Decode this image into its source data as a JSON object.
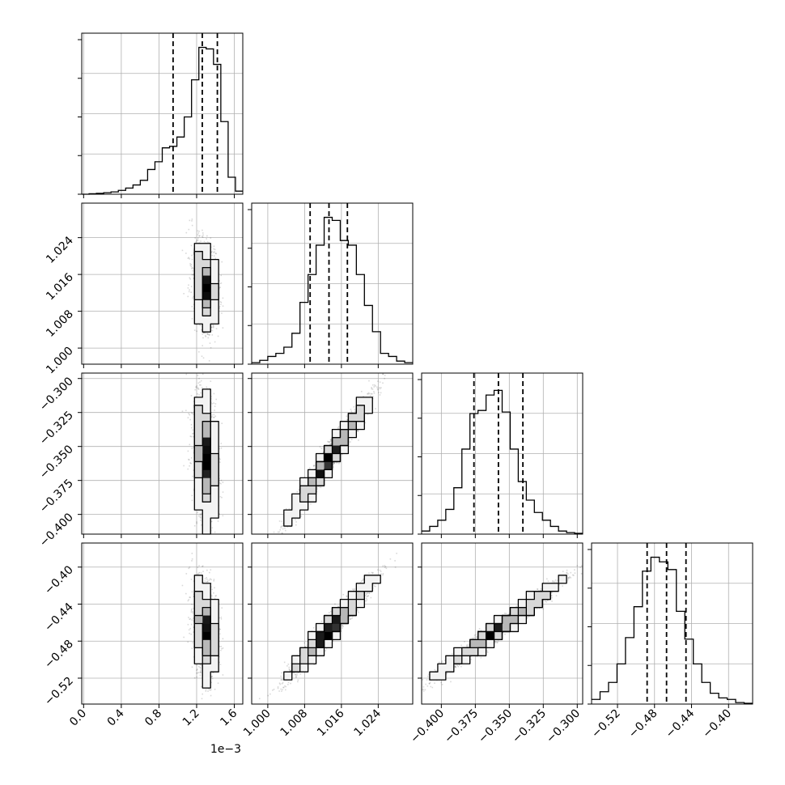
{
  "chart_data": {
    "type": "corner",
    "parameters": [
      {
        "range": [
          -0.02,
          1.69
        ],
        "ticks": [
          0.0,
          0.4,
          0.8,
          1.2,
          1.6
        ],
        "tick_labels": [
          "0.0",
          "0.4",
          "0.8",
          "1.2",
          "1.6"
        ],
        "offset_text": "1e−3",
        "quantiles": [
          0.95,
          1.26,
          1.42
        ]
      },
      {
        "range": [
          0.9965,
          1.0315
        ],
        "ticks": [
          1.0,
          1.008,
          1.016,
          1.024
        ],
        "tick_labels": [
          "1.000",
          "1.008",
          "1.016",
          "1.024"
        ],
        "quantiles": [
          1.0092,
          1.0133,
          1.0173
        ]
      },
      {
        "range": [
          -0.4145,
          -0.296
        ],
        "ticks": [
          -0.4,
          -0.375,
          -0.35,
          -0.325,
          -0.3
        ],
        "tick_labels": [
          "−0.400",
          "−0.375",
          "−0.350",
          "−0.325",
          "−0.300"
        ],
        "quantiles": [
          -0.376,
          -0.358,
          -0.34
        ]
      },
      {
        "range": [
          -0.548,
          -0.374
        ],
        "ticks": [
          -0.52,
          -0.48,
          -0.44,
          -0.4
        ],
        "tick_labels": [
          "−0.52",
          "−0.48",
          "−0.44",
          "−0.40"
        ],
        "quantiles": [
          -0.488,
          -0.467,
          -0.446
        ]
      }
    ],
    "histograms": [
      [
        0.0,
        0.003,
        0.006,
        0.01,
        0.015,
        0.025,
        0.04,
        0.06,
        0.09,
        0.16,
        0.21,
        0.3,
        0.31,
        0.37,
        0.5,
        0.74,
        0.95,
        0.94,
        0.84,
        0.47,
        0.11,
        0.02
      ],
      [
        0.01,
        0.025,
        0.05,
        0.07,
        0.11,
        0.2,
        0.4,
        0.58,
        0.77,
        0.95,
        0.93,
        0.8,
        0.77,
        0.58,
        0.38,
        0.21,
        0.07,
        0.05,
        0.02,
        0.01
      ],
      [
        0.02,
        0.05,
        0.09,
        0.16,
        0.3,
        0.55,
        0.78,
        0.8,
        0.9,
        0.93,
        0.79,
        0.55,
        0.34,
        0.22,
        0.14,
        0.09,
        0.05,
        0.02,
        0.01,
        0.005
      ],
      [
        0.03,
        0.08,
        0.14,
        0.26,
        0.43,
        0.63,
        0.86,
        0.95,
        0.92,
        0.87,
        0.6,
        0.42,
        0.26,
        0.14,
        0.07,
        0.04,
        0.03,
        0.01,
        0.005
      ]
    ],
    "hist_ylim": [
      0,
      1.0
    ],
    "grid": true,
    "contour_levels": 3
  }
}
